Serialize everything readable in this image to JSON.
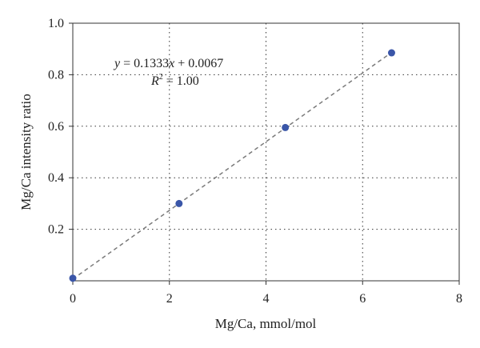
{
  "chart_data": {
    "type": "scatter",
    "title": "",
    "xlabel": "Mg/Ca, mmol/mol",
    "ylabel": "Mg/Ca intensity ratio",
    "xlim": [
      0,
      8
    ],
    "ylim": [
      0,
      1.0
    ],
    "xticks": [
      0,
      2,
      4,
      6,
      8
    ],
    "xtick_labels": [
      "0",
      "2",
      "4",
      "6",
      "8"
    ],
    "yticks": [
      0.2,
      0.4,
      0.6,
      0.8,
      1.0
    ],
    "ytick_labels": [
      "0.2",
      "0.4",
      "0.6",
      "0.8",
      "1.0"
    ],
    "grid": true,
    "series": [
      {
        "color": "#3a56a8",
        "points": [
          {
            "x": 0,
            "y": 0.01
          },
          {
            "x": 2.2,
            "y": 0.3
          },
          {
            "x": 4.4,
            "y": 0.595
          },
          {
            "x": 6.6,
            "y": 0.885
          }
        ]
      }
    ],
    "fit": {
      "type": "linear",
      "slope": 0.1333,
      "intercept": 0.0067,
      "x_range": [
        0,
        6.6
      ],
      "style": "dashed",
      "color": "#7a7a7a"
    },
    "annotations": {
      "equation": {
        "lhs": "y",
        "rhs_a": " = 0.1333",
        "var": "x",
        "rhs_b": " + 0.0067"
      },
      "r2": {
        "sym": "R",
        "sup": "2",
        "rhs": " = 1.00"
      }
    }
  }
}
